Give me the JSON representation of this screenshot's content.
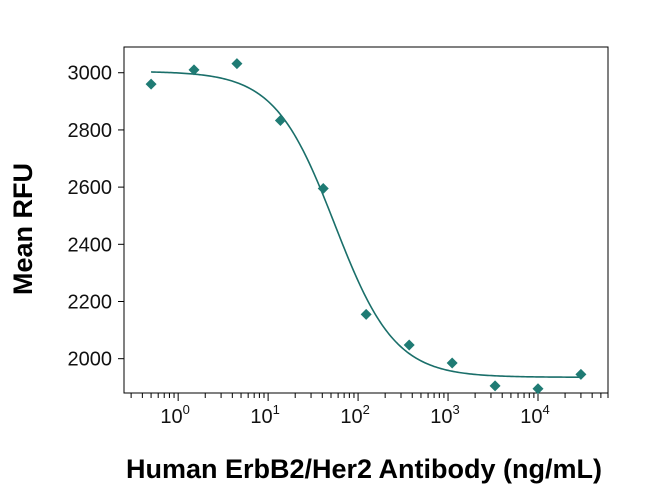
{
  "chart_data": {
    "type": "scatter",
    "xscale": "log",
    "xlabel": "Human ErbB2/Her2 Antibody (ng/mL)",
    "ylabel": "Mean RFU",
    "xlim": [
      0.25,
      60000
    ],
    "ylim": [
      1880,
      3090
    ],
    "yticks": [
      2000,
      2200,
      2400,
      2600,
      2800,
      3000
    ],
    "xticks": [
      1,
      10,
      100,
      1000,
      10000
    ],
    "xtick_labels": [
      {
        "base": "10",
        "exp": "0"
      },
      {
        "base": "10",
        "exp": "1"
      },
      {
        "base": "10",
        "exp": "2"
      },
      {
        "base": "10",
        "exp": "3"
      },
      {
        "base": "10",
        "exp": "4"
      }
    ],
    "points": {
      "x": [
        0.5,
        1.5,
        4.5,
        13.7,
        41,
        123,
        370,
        1111,
        3333,
        10000,
        30000
      ],
      "y": [
        2960,
        3010,
        3032,
        2833,
        2595,
        2155,
        2048,
        1985,
        1905,
        1895,
        1945
      ]
    },
    "fit": {
      "model": "4PL",
      "top": 3005,
      "bottom": 1935,
      "ec50": 55,
      "hill": 1.3
    },
    "colors": {
      "marker": "#1f7b74",
      "line": "#1a6f6a",
      "frame": "#000000"
    }
  }
}
